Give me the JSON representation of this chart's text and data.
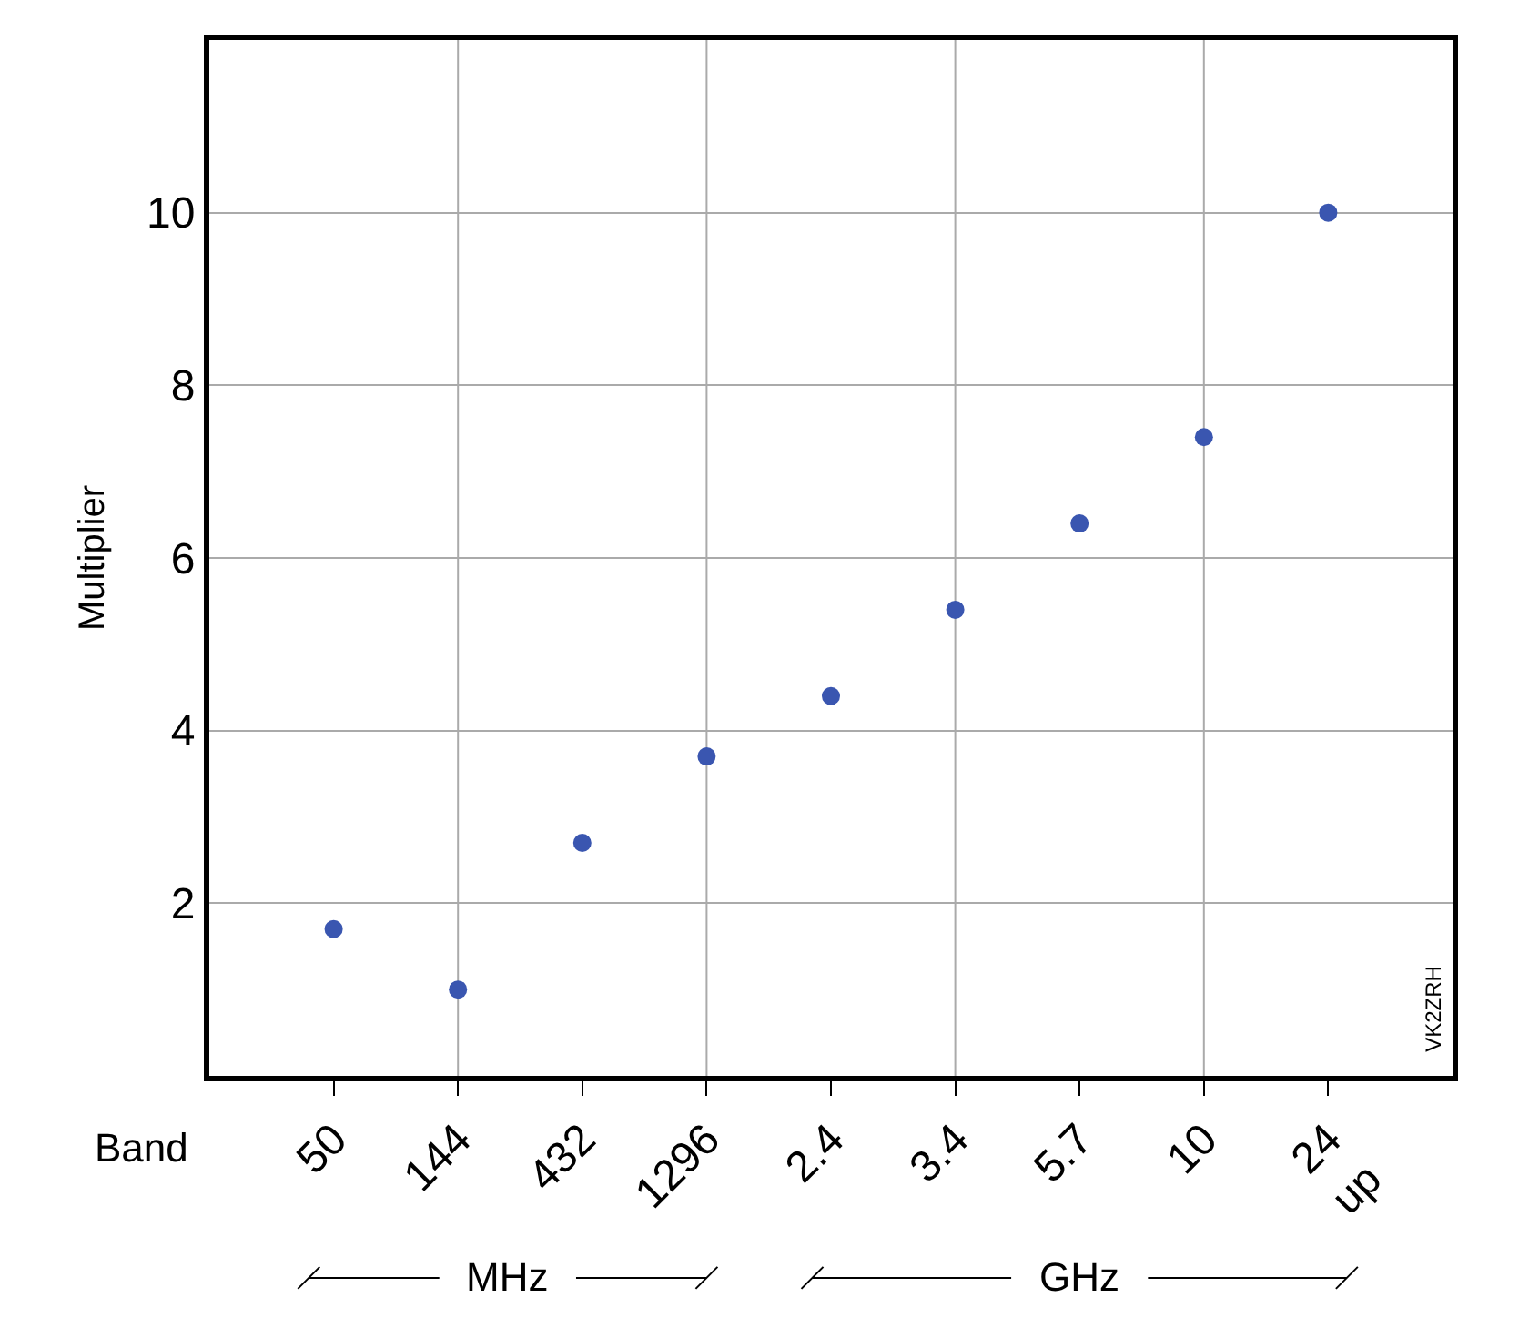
{
  "chart_data": {
    "type": "scatter",
    "xlabel": "Band",
    "ylabel": "Multiplier",
    "categories": [
      "50",
      "144",
      "432",
      "1296",
      "2.4",
      "3.4",
      "5.7",
      "10",
      "24\nup"
    ],
    "series": [
      {
        "color": "#3a56b0",
        "values": [
          1.7,
          1.0,
          2.7,
          3.7,
          4.4,
          5.4,
          6.4,
          7.4,
          10
        ]
      }
    ],
    "ylim": [
      0,
      12
    ],
    "yticks": [
      2,
      4,
      6,
      8,
      10
    ],
    "grid": true,
    "marker": "circle",
    "annotations": [
      "MHz",
      "GHz",
      "VK2ZRH"
    ]
  }
}
